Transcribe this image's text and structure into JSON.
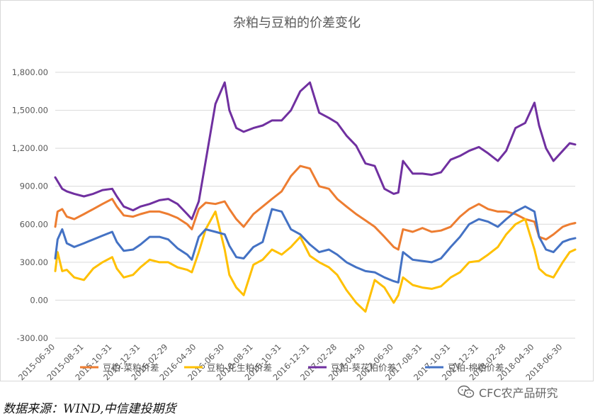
{
  "chart_data": {
    "type": "line",
    "title": "杂粕与豆粕的价差变化",
    "xlabel": "",
    "ylabel": "",
    "ylim": [
      -300,
      1800
    ],
    "y_ticks": [
      "-300.00",
      "0.00",
      "300.00",
      "600.00",
      "900.00",
      "1,200.00",
      "1,500.00",
      "1,800.00"
    ],
    "x_ticks": [
      "2015-06-30",
      "2015-08-31",
      "2015-10-31",
      "2015-12-31",
      "2016-02-29",
      "2016-04-30",
      "2016-06-30",
      "2016-08-31",
      "2016-10-31",
      "2016-12-31",
      "2017-02-28",
      "2017-04-30",
      "2017-06-30",
      "2017-08-31",
      "2017-10-31",
      "2017-12-31",
      "2018-02-28",
      "2018-04-30",
      "2018-06-30"
    ],
    "x_range": [
      "2015-06-30",
      "2018-07-27"
    ],
    "grid": "horizontal",
    "legend_position": "bottom",
    "series": [
      {
        "name": "豆粕-菜粕价差",
        "color": "#ED7D31",
        "points": [
          [
            "2015-06-30",
            580
          ],
          [
            "2015-07-05",
            700
          ],
          [
            "2015-07-15",
            720
          ],
          [
            "2015-07-25",
            660
          ],
          [
            "2015-08-10",
            640
          ],
          [
            "2015-08-31",
            680
          ],
          [
            "2015-09-20",
            720
          ],
          [
            "2015-10-10",
            760
          ],
          [
            "2015-10-31",
            800
          ],
          [
            "2015-11-10",
            740
          ],
          [
            "2015-11-25",
            670
          ],
          [
            "2015-12-15",
            660
          ],
          [
            "2015-12-31",
            680
          ],
          [
            "2016-01-20",
            700
          ],
          [
            "2016-02-10",
            700
          ],
          [
            "2016-02-29",
            680
          ],
          [
            "2016-03-20",
            650
          ],
          [
            "2016-04-10",
            600
          ],
          [
            "2016-04-20",
            560
          ],
          [
            "2016-05-05",
            720
          ],
          [
            "2016-05-20",
            770
          ],
          [
            "2016-06-10",
            760
          ],
          [
            "2016-06-30",
            780
          ],
          [
            "2016-07-10",
            720
          ],
          [
            "2016-07-25",
            640
          ],
          [
            "2016-08-10",
            580
          ],
          [
            "2016-08-31",
            680
          ],
          [
            "2016-09-20",
            740
          ],
          [
            "2016-10-10",
            800
          ],
          [
            "2016-10-31",
            860
          ],
          [
            "2016-11-20",
            980
          ],
          [
            "2016-12-10",
            1060
          ],
          [
            "2016-12-31",
            1040
          ],
          [
            "2017-01-20",
            900
          ],
          [
            "2017-02-10",
            880
          ],
          [
            "2017-02-28",
            800
          ],
          [
            "2017-03-20",
            740
          ],
          [
            "2017-04-10",
            680
          ],
          [
            "2017-04-30",
            630
          ],
          [
            "2017-05-20",
            580
          ],
          [
            "2017-06-10",
            500
          ],
          [
            "2017-06-30",
            420
          ],
          [
            "2017-07-10",
            400
          ],
          [
            "2017-07-20",
            560
          ],
          [
            "2017-08-10",
            540
          ],
          [
            "2017-08-31",
            570
          ],
          [
            "2017-09-20",
            540
          ],
          [
            "2017-10-10",
            550
          ],
          [
            "2017-10-31",
            580
          ],
          [
            "2017-11-20",
            660
          ],
          [
            "2017-12-10",
            720
          ],
          [
            "2017-12-31",
            760
          ],
          [
            "2018-01-20",
            720
          ],
          [
            "2018-02-10",
            700
          ],
          [
            "2018-02-28",
            700
          ],
          [
            "2018-03-20",
            680
          ],
          [
            "2018-04-10",
            640
          ],
          [
            "2018-04-30",
            620
          ],
          [
            "2018-05-10",
            500
          ],
          [
            "2018-05-25",
            480
          ],
          [
            "2018-06-10",
            520
          ],
          [
            "2018-06-30",
            580
          ],
          [
            "2018-07-15",
            600
          ],
          [
            "2018-07-27",
            610
          ]
        ]
      },
      {
        "name": "豆粕-花生粕价差",
        "color": "#FFC000",
        "points": [
          [
            "2015-06-30",
            230
          ],
          [
            "2015-07-05",
            380
          ],
          [
            "2015-07-15",
            230
          ],
          [
            "2015-07-25",
            240
          ],
          [
            "2015-08-10",
            180
          ],
          [
            "2015-08-31",
            160
          ],
          [
            "2015-09-20",
            250
          ],
          [
            "2015-10-10",
            300
          ],
          [
            "2015-10-31",
            340
          ],
          [
            "2015-11-10",
            250
          ],
          [
            "2015-11-25",
            180
          ],
          [
            "2015-12-15",
            200
          ],
          [
            "2015-12-31",
            260
          ],
          [
            "2016-01-20",
            320
          ],
          [
            "2016-02-10",
            300
          ],
          [
            "2016-02-29",
            300
          ],
          [
            "2016-03-20",
            260
          ],
          [
            "2016-04-10",
            240
          ],
          [
            "2016-04-20",
            220
          ],
          [
            "2016-05-05",
            380
          ],
          [
            "2016-05-20",
            560
          ],
          [
            "2016-06-10",
            700
          ],
          [
            "2016-06-30",
            400
          ],
          [
            "2016-07-10",
            200
          ],
          [
            "2016-07-25",
            100
          ],
          [
            "2016-08-10",
            40
          ],
          [
            "2016-08-31",
            280
          ],
          [
            "2016-09-20",
            320
          ],
          [
            "2016-10-10",
            400
          ],
          [
            "2016-10-31",
            360
          ],
          [
            "2016-11-20",
            420
          ],
          [
            "2016-12-10",
            500
          ],
          [
            "2016-12-31",
            350
          ],
          [
            "2017-01-20",
            300
          ],
          [
            "2017-02-10",
            260
          ],
          [
            "2017-02-28",
            200
          ],
          [
            "2017-03-20",
            80
          ],
          [
            "2017-04-10",
            -20
          ],
          [
            "2017-04-30",
            -90
          ],
          [
            "2017-05-20",
            160
          ],
          [
            "2017-06-10",
            100
          ],
          [
            "2017-06-30",
            -20
          ],
          [
            "2017-07-10",
            40
          ],
          [
            "2017-07-20",
            180
          ],
          [
            "2017-08-10",
            120
          ],
          [
            "2017-08-31",
            100
          ],
          [
            "2017-09-20",
            90
          ],
          [
            "2017-10-10",
            110
          ],
          [
            "2017-10-31",
            180
          ],
          [
            "2017-11-20",
            220
          ],
          [
            "2017-12-10",
            300
          ],
          [
            "2017-12-31",
            310
          ],
          [
            "2018-01-20",
            360
          ],
          [
            "2018-02-10",
            420
          ],
          [
            "2018-02-28",
            520
          ],
          [
            "2018-03-20",
            600
          ],
          [
            "2018-04-10",
            640
          ],
          [
            "2018-04-30",
            400
          ],
          [
            "2018-05-10",
            250
          ],
          [
            "2018-05-25",
            200
          ],
          [
            "2018-06-10",
            180
          ],
          [
            "2018-06-30",
            300
          ],
          [
            "2018-07-15",
            380
          ],
          [
            "2018-07-27",
            400
          ]
        ]
      },
      {
        "name": "豆粕-葵花粕价差",
        "color": "#7030A0",
        "points": [
          [
            "2015-06-30",
            970
          ],
          [
            "2015-07-05",
            940
          ],
          [
            "2015-07-15",
            880
          ],
          [
            "2015-07-25",
            860
          ],
          [
            "2015-08-10",
            840
          ],
          [
            "2015-08-31",
            820
          ],
          [
            "2015-09-20",
            840
          ],
          [
            "2015-10-10",
            870
          ],
          [
            "2015-10-31",
            880
          ],
          [
            "2015-11-10",
            820
          ],
          [
            "2015-11-25",
            740
          ],
          [
            "2015-12-15",
            710
          ],
          [
            "2015-12-31",
            740
          ],
          [
            "2016-01-20",
            760
          ],
          [
            "2016-02-10",
            790
          ],
          [
            "2016-02-29",
            800
          ],
          [
            "2016-03-20",
            760
          ],
          [
            "2016-04-10",
            680
          ],
          [
            "2016-04-20",
            640
          ],
          [
            "2016-05-05",
            780
          ],
          [
            "2016-05-20",
            1100
          ],
          [
            "2016-06-10",
            1550
          ],
          [
            "2016-06-30",
            1720
          ],
          [
            "2016-07-10",
            1500
          ],
          [
            "2016-07-25",
            1360
          ],
          [
            "2016-08-10",
            1330
          ],
          [
            "2016-08-31",
            1360
          ],
          [
            "2016-09-20",
            1380
          ],
          [
            "2016-10-10",
            1420
          ],
          [
            "2016-10-31",
            1420
          ],
          [
            "2016-11-20",
            1500
          ],
          [
            "2016-12-10",
            1650
          ],
          [
            "2016-12-31",
            1720
          ],
          [
            "2017-01-20",
            1480
          ],
          [
            "2017-02-10",
            1440
          ],
          [
            "2017-02-28",
            1400
          ],
          [
            "2017-03-20",
            1300
          ],
          [
            "2017-04-10",
            1220
          ],
          [
            "2017-04-30",
            1080
          ],
          [
            "2017-05-20",
            1060
          ],
          [
            "2017-06-10",
            880
          ],
          [
            "2017-06-30",
            840
          ],
          [
            "2017-07-10",
            850
          ],
          [
            "2017-07-20",
            1100
          ],
          [
            "2017-08-10",
            1000
          ],
          [
            "2017-08-31",
            1000
          ],
          [
            "2017-09-20",
            990
          ],
          [
            "2017-10-10",
            1010
          ],
          [
            "2017-10-31",
            1110
          ],
          [
            "2017-11-20",
            1140
          ],
          [
            "2017-12-10",
            1180
          ],
          [
            "2017-12-31",
            1210
          ],
          [
            "2018-01-20",
            1160
          ],
          [
            "2018-02-10",
            1100
          ],
          [
            "2018-02-28",
            1180
          ],
          [
            "2018-03-20",
            1360
          ],
          [
            "2018-04-10",
            1400
          ],
          [
            "2018-04-30",
            1560
          ],
          [
            "2018-05-10",
            1380
          ],
          [
            "2018-05-25",
            1200
          ],
          [
            "2018-06-10",
            1100
          ],
          [
            "2018-06-30",
            1180
          ],
          [
            "2018-07-15",
            1240
          ],
          [
            "2018-07-27",
            1230
          ]
        ]
      },
      {
        "name": "豆粕-棉粕价差",
        "color": "#4472C4",
        "points": [
          [
            "2015-06-30",
            330
          ],
          [
            "2015-07-05",
            480
          ],
          [
            "2015-07-15",
            560
          ],
          [
            "2015-07-25",
            450
          ],
          [
            "2015-08-10",
            420
          ],
          [
            "2015-08-31",
            450
          ],
          [
            "2015-09-20",
            480
          ],
          [
            "2015-10-10",
            510
          ],
          [
            "2015-10-31",
            540
          ],
          [
            "2015-11-10",
            460
          ],
          [
            "2015-11-25",
            390
          ],
          [
            "2015-12-15",
            400
          ],
          [
            "2015-12-31",
            440
          ],
          [
            "2016-01-20",
            500
          ],
          [
            "2016-02-10",
            500
          ],
          [
            "2016-02-29",
            480
          ],
          [
            "2016-03-20",
            410
          ],
          [
            "2016-04-10",
            360
          ],
          [
            "2016-04-20",
            320
          ],
          [
            "2016-05-05",
            500
          ],
          [
            "2016-05-20",
            560
          ],
          [
            "2016-06-10",
            540
          ],
          [
            "2016-06-30",
            520
          ],
          [
            "2016-07-10",
            430
          ],
          [
            "2016-07-25",
            340
          ],
          [
            "2016-08-10",
            330
          ],
          [
            "2016-08-31",
            420
          ],
          [
            "2016-09-20",
            460
          ],
          [
            "2016-10-10",
            720
          ],
          [
            "2016-10-31",
            700
          ],
          [
            "2016-11-20",
            560
          ],
          [
            "2016-12-10",
            520
          ],
          [
            "2016-12-31",
            440
          ],
          [
            "2017-01-20",
            380
          ],
          [
            "2017-02-10",
            400
          ],
          [
            "2017-02-28",
            360
          ],
          [
            "2017-03-20",
            300
          ],
          [
            "2017-04-10",
            260
          ],
          [
            "2017-04-30",
            230
          ],
          [
            "2017-05-20",
            220
          ],
          [
            "2017-06-10",
            180
          ],
          [
            "2017-06-30",
            150
          ],
          [
            "2017-07-10",
            140
          ],
          [
            "2017-07-20",
            380
          ],
          [
            "2017-08-10",
            320
          ],
          [
            "2017-08-31",
            310
          ],
          [
            "2017-09-20",
            300
          ],
          [
            "2017-10-10",
            330
          ],
          [
            "2017-10-31",
            420
          ],
          [
            "2017-11-20",
            500
          ],
          [
            "2017-12-10",
            600
          ],
          [
            "2017-12-31",
            640
          ],
          [
            "2018-01-20",
            620
          ],
          [
            "2018-02-10",
            580
          ],
          [
            "2018-02-28",
            640
          ],
          [
            "2018-03-20",
            700
          ],
          [
            "2018-04-10",
            740
          ],
          [
            "2018-04-30",
            700
          ],
          [
            "2018-05-10",
            500
          ],
          [
            "2018-05-25",
            400
          ],
          [
            "2018-06-10",
            380
          ],
          [
            "2018-06-30",
            460
          ],
          [
            "2018-07-15",
            480
          ],
          [
            "2018-07-27",
            490
          ]
        ]
      }
    ]
  },
  "source_note": "数据来源：WIND,中信建投期货",
  "watermark": {
    "text": "CFC农产品研究",
    "icon": "wechat-icon"
  }
}
